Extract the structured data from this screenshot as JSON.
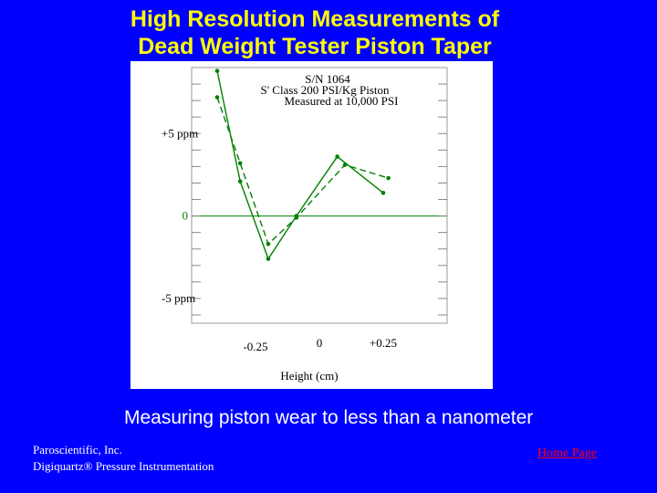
{
  "slide": {
    "title_line1": "High Resolution Measurements of",
    "title_line2": "Dead Weight Tester Piston Taper",
    "subtitle": "Measuring piston wear to less than a nanometer",
    "company_line1": "Paroscientific, Inc.",
    "company_line2": "Digiquartz® Pressure Instrumentation",
    "home_link": "Home Page",
    "colors": {
      "background": "#0000ff",
      "title": "#ffff00",
      "link": "#ff0000",
      "plot": "#008000"
    }
  },
  "chart_data": {
    "type": "line",
    "title_lines": [
      "S/N 1064",
      "S' Class 200 PSI/Kg Piston",
      "Measured at 10,000 PSI"
    ],
    "xlabel": "Height (cm)",
    "x_tick_labels": [
      "-0.25",
      "0",
      "+0.25"
    ],
    "y_tick_labels": [
      "+5 ppm",
      "0",
      "-5 ppm"
    ],
    "xlim": [
      -0.5,
      0.5
    ],
    "ylim": [
      -6.5,
      9
    ],
    "series": [
      {
        "style": "solid",
        "x": [
          -0.4,
          -0.31,
          -0.2,
          -0.09,
          0.07,
          0.25
        ],
        "y": [
          8.8,
          2.1,
          -2.6,
          0.0,
          3.6,
          1.4
        ]
      },
      {
        "style": "dashed",
        "x": [
          -0.4,
          -0.31,
          -0.2,
          -0.09,
          0.1,
          0.27
        ],
        "y": [
          7.2,
          3.2,
          -1.7,
          -0.1,
          3.1,
          2.3
        ]
      }
    ]
  }
}
